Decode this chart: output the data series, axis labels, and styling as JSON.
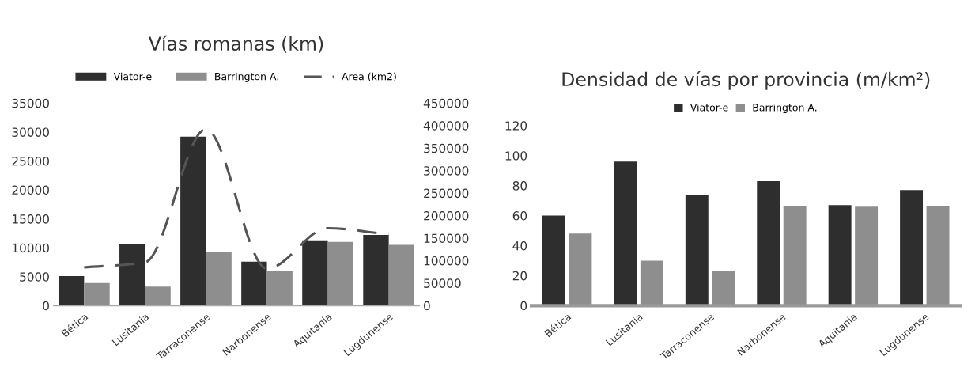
{
  "chart_data": [
    {
      "type": "bar",
      "title": "Vías romanas (km)",
      "categories": [
        "Bética",
        "Lusitania",
        "Tarraconense",
        "Narbonense",
        "Aquitania",
        "Lugdunense"
      ],
      "series": [
        {
          "name": "Viator-e",
          "color": "#2e2e2e",
          "values": [
            5100,
            10700,
            29200,
            7600,
            11300,
            12200
          ]
        },
        {
          "name": "Barrington A.",
          "color": "#8e8e8e",
          "values": [
            3900,
            3300,
            9200,
            6000,
            11000,
            10500
          ]
        },
        {
          "name": "Area (km2)",
          "type": "line",
          "axis": "y2",
          "color": "#555555",
          "line_style": "dashed",
          "marker": "none",
          "values": [
            85000,
            96000,
            392000,
            82000,
            172000,
            158000
          ]
        }
      ],
      "ylim": [
        0,
        35000
      ],
      "yticks": [
        0,
        5000,
        10000,
        15000,
        20000,
        25000,
        30000,
        35000
      ],
      "y2lim": [
        0,
        450000
      ],
      "y2ticks": [
        0,
        50000,
        100000,
        150000,
        200000,
        250000,
        300000,
        350000,
        400000,
        450000
      ],
      "grid": false,
      "legend": "top"
    },
    {
      "type": "bar",
      "title": "Densidad de vías por provincia (m/km²)",
      "categories": [
        "Bética",
        "Lusitania",
        "Tarraconense",
        "Narbonense",
        "Aquitania",
        "Lugdunense"
      ],
      "series": [
        {
          "name": "Viator-e",
          "color": "#2e2e2e",
          "values": [
            60,
            96,
            74,
            83,
            67,
            77
          ]
        },
        {
          "name": "Barrington A.",
          "color": "#8e8e8e",
          "values": [
            48,
            30,
            23,
            66.5,
            66,
            66.5
          ]
        }
      ],
      "ylim": [
        0,
        120
      ],
      "yticks": [
        0,
        20,
        40,
        60,
        80,
        100,
        120
      ],
      "grid": false,
      "legend": "top"
    }
  ]
}
